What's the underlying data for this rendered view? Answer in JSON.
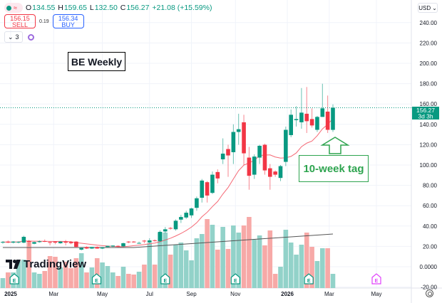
{
  "header": {
    "ohlc": {
      "o_label": "O",
      "o": "134.55",
      "h_label": "H",
      "h": "159.65",
      "l_label": "L",
      "l": "132.50",
      "c_label": "C",
      "c": "156.27",
      "change": "+21.08 (+15.59%)"
    },
    "sell": {
      "price": "156.15",
      "label": "SELL"
    },
    "spread": "0.19",
    "buy": {
      "price": "156.34",
      "label": "BUY"
    },
    "indicator_count": "3",
    "currency": "USD"
  },
  "annotations": {
    "title": "BE Weekly",
    "tag": "10-week tag"
  },
  "branding": {
    "logo": "TradingView"
  },
  "price_label": {
    "price": "156.27",
    "countdown": "3d 3h"
  },
  "colors": {
    "up": "#089981",
    "down": "#f23645",
    "volume_up": "#92d2c9",
    "volume_down": "#f7a9a7",
    "ma10": "#f23645",
    "volume_ma": "#555555",
    "annotation": "#2ea44f",
    "earnings_future": "#e040fb"
  },
  "chart_data": {
    "type": "candlestick",
    "interval": "weekly",
    "ylim": [
      -20,
      250
    ],
    "yticks": [
      "240.00",
      "220.00",
      "200.00",
      "180.00",
      "160.00",
      "140.00",
      "120.00",
      "100.00",
      "80.00",
      "60.00",
      "40.00",
      "20.00",
      "0.0000",
      "-20.00"
    ],
    "ytick_values": [
      240,
      220,
      200,
      180,
      160,
      140,
      120,
      100,
      80,
      60,
      40,
      20,
      0,
      -20
    ],
    "xticks": [
      "2025",
      "Mar",
      "May",
      "Jul",
      "Sep",
      "Nov",
      "2026",
      "Mar",
      "May"
    ],
    "grid": true,
    "ohlc": [
      [
        23.7,
        25.2,
        22.6,
        24.4
      ],
      [
        24.7,
        25.8,
        23.1,
        23.8
      ],
      [
        23.7,
        25.2,
        22.9,
        24.7
      ],
      [
        24.0,
        25.0,
        22.9,
        24.5
      ],
      [
        23.7,
        30.5,
        23.1,
        29.4
      ],
      [
        25.2,
        26.3,
        20.5,
        24.7
      ],
      [
        22.6,
        24.7,
        22.1,
        24.2
      ],
      [
        24.2,
        25.8,
        23.7,
        25.0
      ],
      [
        25.2,
        26.8,
        24.2,
        24.5
      ],
      [
        24.2,
        24.7,
        21.0,
        23.9
      ],
      [
        24.7,
        25.2,
        22.1,
        23.7
      ],
      [
        23.1,
        25.2,
        22.6,
        24.7
      ],
      [
        24.7,
        26.3,
        21.0,
        23.7
      ],
      [
        24.2,
        25.2,
        22.1,
        23.1
      ],
      [
        24.7,
        25.2,
        18.9,
        19.5
      ],
      [
        16.8,
        19.0,
        16.0,
        18.4
      ],
      [
        19.4,
        20.0,
        17.4,
        17.9
      ],
      [
        17.9,
        19.5,
        17.4,
        19.4
      ],
      [
        19.4,
        20.0,
        17.6,
        17.9
      ],
      [
        17.9,
        19.4,
        17.4,
        18.9
      ],
      [
        19.4,
        20.5,
        18.9,
        20.5
      ],
      [
        19.9,
        21.0,
        19.4,
        20.8
      ],
      [
        20.5,
        21.0,
        19.4,
        20.0
      ],
      [
        20.0,
        23.7,
        19.6,
        23.1
      ],
      [
        24.7,
        25.2,
        23.1,
        24.2
      ],
      [
        24.7,
        25.2,
        23.7,
        24.2
      ],
      [
        22.9,
        24.7,
        22.6,
        23.4
      ],
      [
        25.6,
        26.3,
        23.1,
        25.0
      ],
      [
        23.8,
        28.0,
        23.1,
        25.9
      ],
      [
        26.0,
        26.8,
        24.7,
        25.7
      ],
      [
        25.2,
        35.8,
        24.2,
        34.3
      ],
      [
        34.7,
        39.0,
        33.0,
        36.8
      ],
      [
        38.1,
        39.0,
        36.5,
        37.7
      ],
      [
        36.8,
        46.5,
        35.5,
        45.2
      ],
      [
        46.3,
        51.0,
        43.0,
        48.9
      ],
      [
        48.4,
        55.0,
        47.0,
        53.1
      ],
      [
        50.5,
        58.0,
        48.0,
        57.3
      ],
      [
        57.9,
        69.0,
        55.0,
        67.3
      ],
      [
        67.8,
        86.3,
        63.1,
        84.7
      ],
      [
        83.1,
        84.2,
        63.1,
        70.0
      ],
      [
        72.6,
        93.6,
        71.5,
        90.5
      ],
      [
        93.1,
        95.7,
        82.0,
        86.8
      ],
      [
        105.6,
        126.2,
        101.0,
        111.2
      ],
      [
        115.7,
        119.9,
        88.4,
        109.4
      ],
      [
        112.6,
        140.0,
        101.0,
        132.5
      ],
      [
        132.5,
        150.4,
        119.9,
        135.2
      ],
      [
        142.0,
        149.4,
        100.0,
        111.5
      ],
      [
        107.3,
        117.8,
        75.7,
        89.4
      ],
      [
        90.5,
        110.5,
        86.3,
        108.3
      ],
      [
        107.3,
        119.9,
        101.0,
        118.9
      ],
      [
        119.9,
        121.0,
        90.5,
        94.7
      ],
      [
        96.8,
        101.0,
        75.7,
        88.4
      ],
      [
        93.6,
        94.7,
        88.4,
        90.5
      ],
      [
        87.3,
        100.0,
        84.2,
        98.9
      ],
      [
        103.1,
        137.8,
        98.9,
        134.6
      ],
      [
        129.4,
        154.6,
        127.3,
        149.4
      ],
      [
        144.1,
        157.8,
        137.8,
        145.2
      ],
      [
        142.0,
        175.7,
        135.7,
        151.5
      ],
      [
        150.4,
        176.7,
        131.5,
        143.1
      ],
      [
        145.2,
        155.7,
        136.8,
        138.9
      ],
      [
        134.6,
        148.3,
        132.5,
        147.3
      ],
      [
        147.3,
        179.9,
        147.3,
        155.7
      ],
      [
        152.5,
        168.3,
        131.5,
        134.6
      ],
      [
        134.55,
        159.65,
        132.5,
        156.27
      ]
    ],
    "volume_relative": [
      14,
      22,
      22,
      38,
      40,
      66,
      22,
      20,
      24,
      45,
      44,
      29,
      37,
      28,
      42,
      49,
      22,
      29,
      42,
      36,
      31,
      22,
      17,
      30,
      20,
      19,
      23,
      33,
      63,
      33,
      78,
      78,
      47,
      61,
      64,
      53,
      39,
      70,
      76,
      97,
      89,
      54,
      86,
      55,
      88,
      78,
      88,
      100,
      68,
      74,
      60,
      81,
      20,
      30,
      82,
      64,
      47,
      61,
      78,
      58,
      38,
      56,
      56,
      20
    ],
    "volume_ma_points": [
      [
        0,
        57
      ],
      [
        25,
        57
      ],
      [
        63,
        76
      ]
    ],
    "moving_average": {
      "period_weeks": 10
    },
    "earnings_label": "E"
  }
}
